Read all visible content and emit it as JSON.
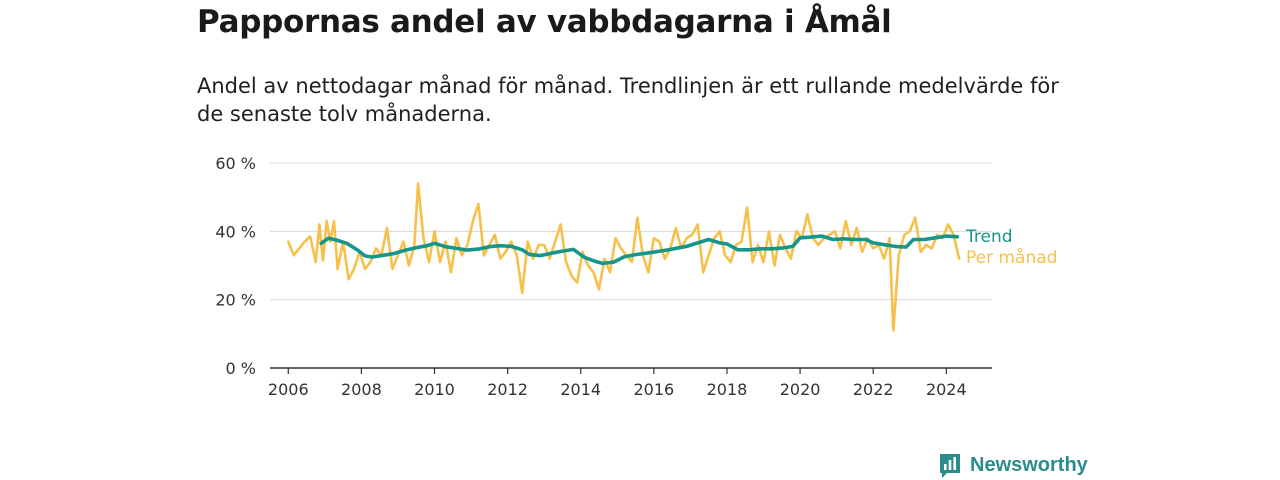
{
  "title": "Pappornas andel av vabbdagarna i Åmål",
  "subtitle": "Andel av nettodagar månad för månad. Trendlinjen är ett rullande medelvärde för de senaste tolv månaderna.",
  "brand": {
    "name": "Newsworthy",
    "color": "#2b8c8c"
  },
  "colors": {
    "trend": "#16968a",
    "monthly": "#f7c04a",
    "grid": "#d9d9d9",
    "axis": "#333333"
  },
  "chart_data": {
    "type": "line",
    "xlim": [
      2005.5,
      2025.25
    ],
    "ylim": [
      0,
      60
    ],
    "x_ticks": [
      2006,
      2008,
      2010,
      2012,
      2014,
      2016,
      2018,
      2020,
      2022,
      2024
    ],
    "y_ticks": [
      0,
      20,
      40,
      60
    ],
    "y_tick_labels": [
      "0 %",
      "20 %",
      "40 %",
      "60 %"
    ],
    "grid": true,
    "legend": "end-of-line labels",
    "series": [
      {
        "name": "Trend",
        "color": "#16968a",
        "x": [
          2006.9,
          2007.1,
          2007.3,
          2007.6,
          2007.9,
          2008.1,
          2008.3,
          2008.6,
          2008.9,
          2009.2,
          2009.5,
          2009.8,
          2010.0,
          2010.3,
          2010.6,
          2010.9,
          2011.2,
          2011.5,
          2011.8,
          2012.1,
          2012.4,
          2012.6,
          2012.9,
          2013.2,
          2013.5,
          2013.8,
          2014.1,
          2014.4,
          2014.6,
          2014.9,
          2015.2,
          2015.5,
          2015.8,
          2016.1,
          2016.4,
          2016.7,
          2016.9,
          2017.2,
          2017.5,
          2017.8,
          2018.0,
          2018.3,
          2018.6,
          2018.9,
          2019.2,
          2019.5,
          2019.8,
          2020.0,
          2020.3,
          2020.6,
          2020.9,
          2021.2,
          2021.5,
          2021.8,
          2022.0,
          2022.3,
          2022.6,
          2022.9,
          2023.1,
          2023.4,
          2023.7,
          2024.0,
          2024.3
        ],
        "values": [
          36.5,
          38.0,
          37.5,
          36.5,
          34.5,
          32.8,
          32.5,
          33.0,
          33.5,
          34.5,
          35.2,
          35.8,
          36.5,
          35.5,
          35.0,
          34.5,
          34.8,
          35.5,
          35.8,
          35.6,
          34.6,
          33.2,
          32.9,
          33.6,
          34.2,
          34.7,
          32.4,
          31.2,
          30.6,
          31.0,
          32.6,
          33.2,
          33.6,
          34.1,
          34.6,
          35.2,
          35.6,
          36.6,
          37.6,
          36.6,
          36.3,
          34.6,
          34.6,
          34.9,
          34.9,
          35.1,
          35.6,
          38.1,
          38.3,
          38.6,
          37.6,
          37.8,
          37.6,
          37.6,
          36.6,
          36.1,
          35.6,
          35.4,
          37.6,
          37.6,
          38.1,
          38.6,
          38.4
        ]
      },
      {
        "name": "Per månad",
        "color": "#f7c04a",
        "x": [
          2006.0,
          2006.15,
          2006.3,
          2006.45,
          2006.6,
          2006.75,
          2006.85,
          2006.95,
          2007.05,
          2007.15,
          2007.25,
          2007.35,
          2007.5,
          2007.65,
          2007.8,
          2007.95,
          2008.1,
          2008.25,
          2008.4,
          2008.55,
          2008.7,
          2008.85,
          2009.0,
          2009.15,
          2009.3,
          2009.45,
          2009.55,
          2009.7,
          2009.85,
          2010.0,
          2010.15,
          2010.3,
          2010.45,
          2010.6,
          2010.75,
          2010.9,
          2011.05,
          2011.2,
          2011.35,
          2011.5,
          2011.65,
          2011.8,
          2011.95,
          2012.1,
          2012.25,
          2012.4,
          2012.55,
          2012.7,
          2012.85,
          2013.0,
          2013.15,
          2013.3,
          2013.45,
          2013.6,
          2013.75,
          2013.9,
          2014.05,
          2014.2,
          2014.35,
          2014.5,
          2014.65,
          2014.8,
          2014.95,
          2015.1,
          2015.25,
          2015.4,
          2015.55,
          2015.7,
          2015.85,
          2016.0,
          2016.15,
          2016.3,
          2016.45,
          2016.6,
          2016.75,
          2016.9,
          2017.05,
          2017.2,
          2017.35,
          2017.5,
          2017.65,
          2017.8,
          2017.95,
          2018.1,
          2018.25,
          2018.4,
          2018.55,
          2018.7,
          2018.85,
          2019.0,
          2019.15,
          2019.3,
          2019.45,
          2019.6,
          2019.75,
          2019.9,
          2020.05,
          2020.2,
          2020.35,
          2020.5,
          2020.65,
          2020.8,
          2020.95,
          2021.1,
          2021.25,
          2021.4,
          2021.55,
          2021.7,
          2021.85,
          2022.0,
          2022.15,
          2022.3,
          2022.45,
          2022.55,
          2022.7,
          2022.85,
          2023.0,
          2023.15,
          2023.3,
          2023.45,
          2023.6,
          2023.75,
          2023.9,
          2024.05,
          2024.2,
          2024.35
        ],
        "values": [
          37.0,
          33.0,
          35.0,
          37.0,
          38.5,
          31.0,
          42.0,
          31.5,
          43.0,
          37.0,
          43.0,
          29.0,
          37.0,
          26.0,
          29.0,
          34.0,
          29.0,
          31.0,
          35.0,
          33.0,
          41.0,
          29.0,
          33.0,
          37.0,
          30.0,
          36.0,
          54.0,
          38.0,
          31.0,
          40.0,
          31.0,
          37.0,
          28.0,
          38.0,
          33.0,
          36.0,
          43.0,
          48.0,
          33.0,
          36.0,
          39.0,
          32.0,
          34.0,
          37.0,
          33.0,
          22.0,
          37.0,
          32.0,
          36.0,
          36.0,
          32.0,
          37.0,
          42.0,
          31.0,
          27.0,
          25.0,
          34.0,
          30.0,
          28.0,
          23.0,
          32.0,
          28.0,
          38.0,
          35.0,
          33.0,
          31.0,
          44.0,
          33.0,
          28.0,
          38.0,
          37.0,
          32.0,
          35.0,
          41.0,
          35.0,
          38.0,
          39.0,
          42.0,
          28.0,
          33.0,
          38.0,
          40.0,
          33.0,
          31.0,
          36.0,
          37.0,
          47.0,
          31.0,
          36.0,
          31.0,
          40.0,
          30.0,
          39.0,
          35.0,
          32.0,
          40.0,
          38.0,
          45.0,
          38.0,
          36.0,
          38.0,
          39.0,
          40.0,
          35.0,
          43.0,
          36.0,
          41.0,
          34.0,
          38.0,
          35.0,
          36.0,
          32.0,
          38.0,
          11.0,
          33.0,
          39.0,
          40.0,
          44.0,
          34.0,
          36.0,
          35.0,
          39.0,
          38.0,
          42.0,
          39.0,
          32.0
        ]
      }
    ]
  }
}
